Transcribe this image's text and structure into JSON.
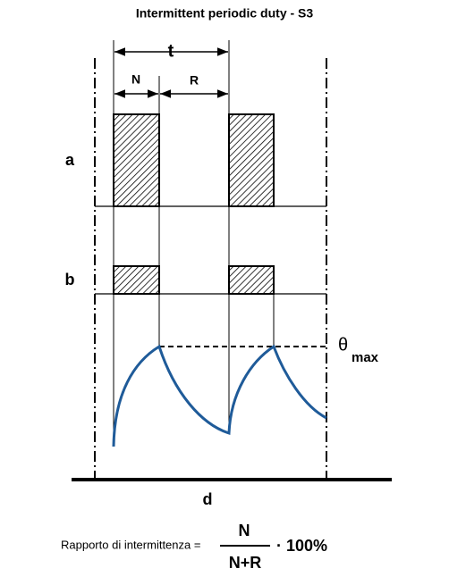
{
  "title": "Intermittent periodic duty - S3",
  "labels": {
    "t": "t",
    "n": "N",
    "r": "R",
    "a": "a",
    "b": "b",
    "theta": "θ",
    "max": "max",
    "d": "d"
  },
  "formula": {
    "text": "Rapporto di intermittenza =",
    "numerator": "N",
    "denominator": "N+R",
    "factor": "· 100%"
  }
}
